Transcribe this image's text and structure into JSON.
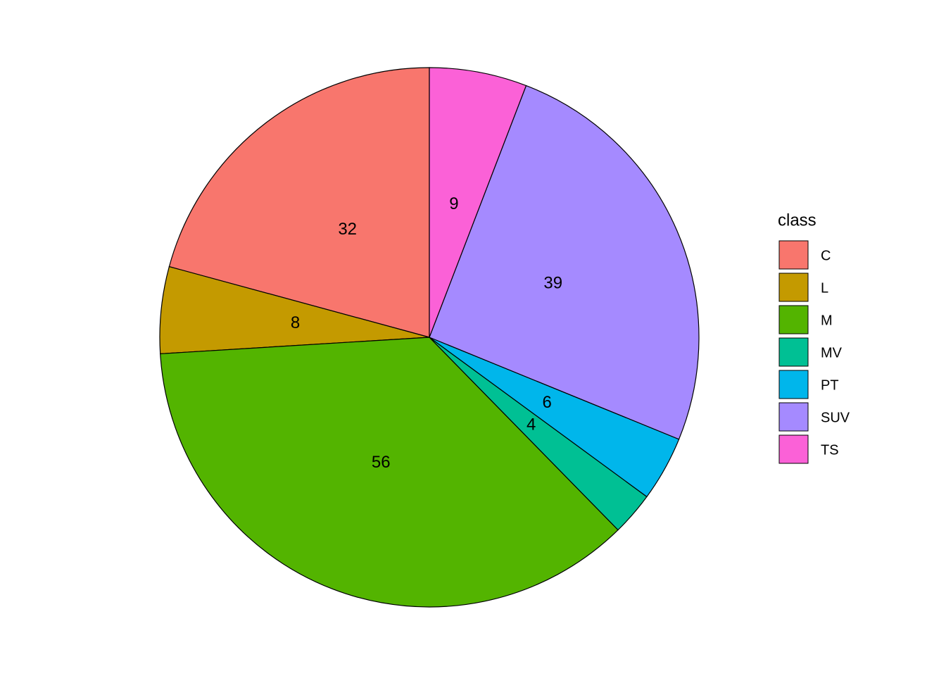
{
  "chart_data": {
    "type": "pie",
    "legend_title": "class",
    "categories": [
      "C",
      "L",
      "M",
      "MV",
      "PT",
      "SUV",
      "TS"
    ],
    "values": [
      32,
      8,
      56,
      4,
      6,
      39,
      9
    ],
    "colors": [
      "#F8766D",
      "#C49A00",
      "#53B400",
      "#00C094",
      "#00B6EB",
      "#A58AFF",
      "#FB61D7"
    ],
    "legend_position": "right"
  }
}
